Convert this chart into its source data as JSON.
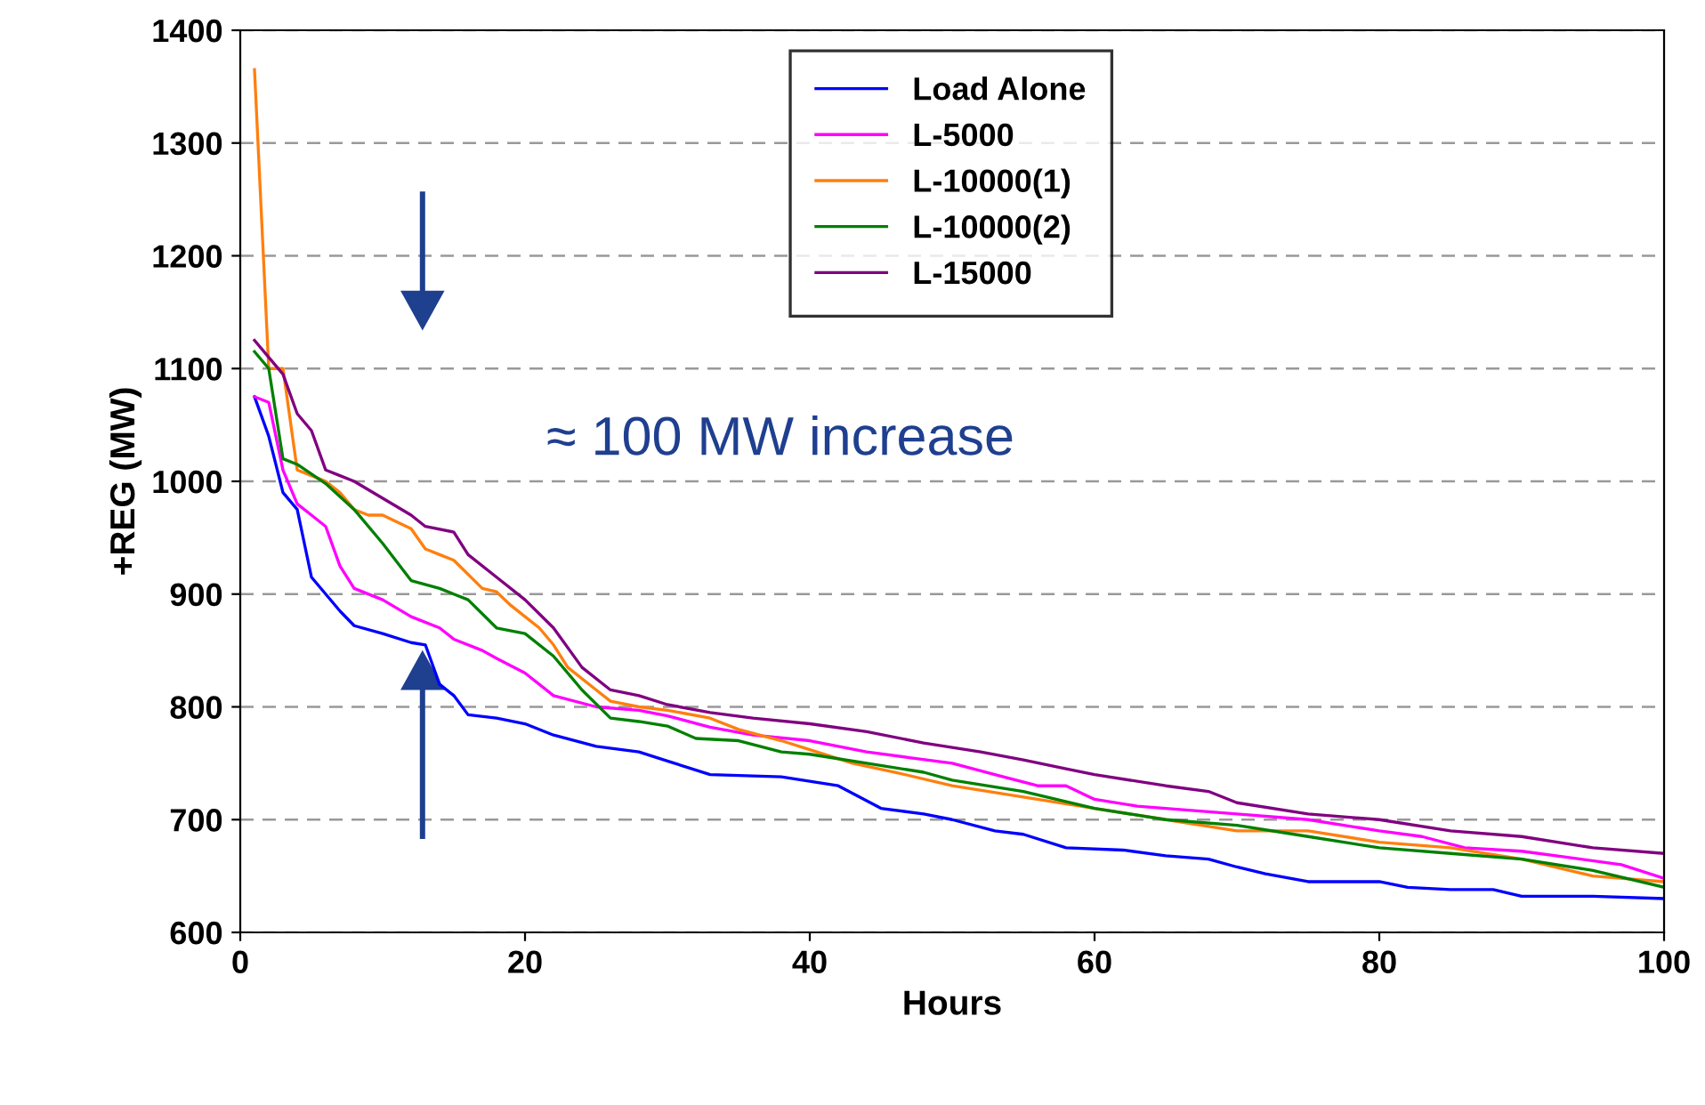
{
  "chart_data": {
    "type": "line",
    "xlabel": "Hours",
    "ylabel": "+REG (MW)",
    "annotations": [
      "≈ 100 MW increase"
    ],
    "xlim": [
      0,
      100
    ],
    "xticks": [
      0,
      20,
      40,
      60,
      80,
      100
    ],
    "ylim": [
      600,
      1400
    ],
    "yticks": [
      600,
      700,
      800,
      900,
      1000,
      1100,
      1200,
      1300,
      1400
    ],
    "grid": "y",
    "legend": "top",
    "marker": "none",
    "line_style": "solid",
    "series": [
      {
        "name": "Load Alone",
        "color": "#0000ff",
        "x": [
          1,
          2,
          3,
          4,
          5,
          6,
          7,
          8,
          10,
          12,
          13,
          14,
          15,
          16,
          18,
          20,
          22,
          25,
          28,
          30,
          33,
          38,
          42,
          45,
          48,
          50,
          53,
          55,
          58,
          62,
          65,
          68,
          70,
          72,
          75,
          80,
          82,
          85,
          88,
          90,
          95,
          100
        ],
        "values": [
          1075,
          1040,
          990,
          975,
          915,
          900,
          885,
          872,
          865,
          857,
          855,
          820,
          810,
          793,
          790,
          785,
          775,
          765,
          760,
          752,
          740,
          738,
          730,
          710,
          705,
          700,
          690,
          687,
          675,
          673,
          668,
          665,
          658,
          652,
          645,
          645,
          640,
          638,
          638,
          632,
          632,
          630
        ]
      },
      {
        "name": "L-5000",
        "color": "#ff00ff",
        "x": [
          1,
          2,
          3,
          4,
          5,
          6,
          7,
          8,
          10,
          12,
          14,
          15,
          17,
          18,
          20,
          22,
          25,
          28,
          30,
          33,
          36,
          40,
          44,
          47,
          50,
          53,
          56,
          58,
          60,
          63,
          65,
          70,
          75,
          80,
          83,
          86,
          90,
          93,
          97,
          100
        ],
        "values": [
          1075,
          1070,
          1010,
          980,
          970,
          960,
          925,
          905,
          895,
          880,
          870,
          860,
          850,
          843,
          830,
          810,
          800,
          797,
          792,
          782,
          775,
          770,
          760,
          755,
          750,
          740,
          730,
          730,
          718,
          712,
          710,
          705,
          700,
          690,
          685,
          675,
          672,
          667,
          660,
          648
        ]
      },
      {
        "name": "L-10000(1)",
        "color": "#ff7f0e",
        "x": [
          1,
          2,
          3,
          4,
          5,
          6,
          7,
          8,
          9,
          10,
          12,
          13,
          14,
          15,
          17,
          18,
          19,
          20,
          21,
          22,
          23,
          25,
          26,
          28,
          30,
          33,
          35,
          38,
          40,
          43,
          46,
          50,
          55,
          60,
          65,
          70,
          75,
          80,
          85,
          90,
          95,
          100
        ],
        "values": [
          1365,
          1100,
          1100,
          1010,
          1005,
          1000,
          990,
          975,
          970,
          970,
          958,
          940,
          935,
          930,
          905,
          902,
          890,
          880,
          870,
          855,
          835,
          815,
          805,
          800,
          797,
          790,
          780,
          770,
          762,
          750,
          742,
          730,
          720,
          710,
          700,
          690,
          690,
          680,
          675,
          665,
          650,
          645
        ]
      },
      {
        "name": "L-10000(2)",
        "color": "#008000",
        "x": [
          1,
          2,
          3,
          4,
          6,
          8,
          10,
          12,
          14,
          16,
          18,
          20,
          22,
          24,
          26,
          28,
          30,
          32,
          35,
          38,
          40,
          44,
          48,
          50,
          55,
          60,
          65,
          70,
          75,
          80,
          85,
          90,
          95,
          100
        ],
        "values": [
          1115,
          1100,
          1020,
          1015,
          998,
          975,
          945,
          912,
          905,
          895,
          870,
          865,
          845,
          815,
          790,
          787,
          783,
          772,
          770,
          760,
          758,
          750,
          742,
          735,
          725,
          710,
          700,
          695,
          685,
          675,
          670,
          665,
          655,
          640
        ]
      },
      {
        "name": "L-15000",
        "color": "#800080",
        "x": [
          1,
          2,
          3,
          4,
          5,
          6,
          7,
          8,
          10,
          12,
          13,
          15,
          16,
          18,
          20,
          22,
          24,
          26,
          28,
          30,
          33,
          36,
          40,
          44,
          48,
          52,
          55,
          58,
          60,
          65,
          68,
          70,
          75,
          80,
          85,
          90,
          95,
          100
        ],
        "values": [
          1125,
          1110,
          1095,
          1060,
          1045,
          1010,
          1005,
          1000,
          985,
          970,
          960,
          955,
          935,
          915,
          895,
          870,
          835,
          815,
          810,
          802,
          795,
          790,
          785,
          778,
          768,
          760,
          753,
          745,
          740,
          730,
          725,
          715,
          705,
          700,
          690,
          685,
          675,
          670
        ]
      }
    ]
  }
}
